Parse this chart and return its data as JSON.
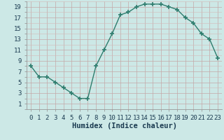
{
  "x": [
    0,
    1,
    2,
    3,
    4,
    5,
    6,
    7,
    8,
    9,
    10,
    11,
    12,
    13,
    14,
    15,
    16,
    17,
    18,
    19,
    20,
    21,
    22,
    23
  ],
  "y": [
    8,
    6,
    6,
    5,
    4,
    3,
    2,
    2,
    8,
    11,
    14,
    17.5,
    18,
    19,
    19.5,
    19.5,
    19.5,
    19,
    18.5,
    17,
    16,
    14,
    13,
    9.5
  ],
  "line_color": "#2e7d6e",
  "marker": "+",
  "marker_size": 4,
  "bg_color": "#cce8e6",
  "grid_color_minor": "#d4b8b8",
  "grid_color_major": "#c4a8a8",
  "xlabel": "Humidex (Indice chaleur)",
  "tick_color": "#1a3a50",
  "xlim": [
    -0.5,
    23.5
  ],
  "ylim": [
    0.0,
    20.0
  ],
  "yticks": [
    1,
    3,
    5,
    7,
    9,
    11,
    13,
    15,
    17,
    19
  ],
  "xticks": [
    0,
    1,
    2,
    3,
    4,
    5,
    6,
    7,
    8,
    9,
    10,
    11,
    12,
    13,
    14,
    15,
    16,
    17,
    18,
    19,
    20,
    21,
    22,
    23
  ],
  "tick_fontsize": 6.5,
  "xlabel_fontsize": 7.5
}
